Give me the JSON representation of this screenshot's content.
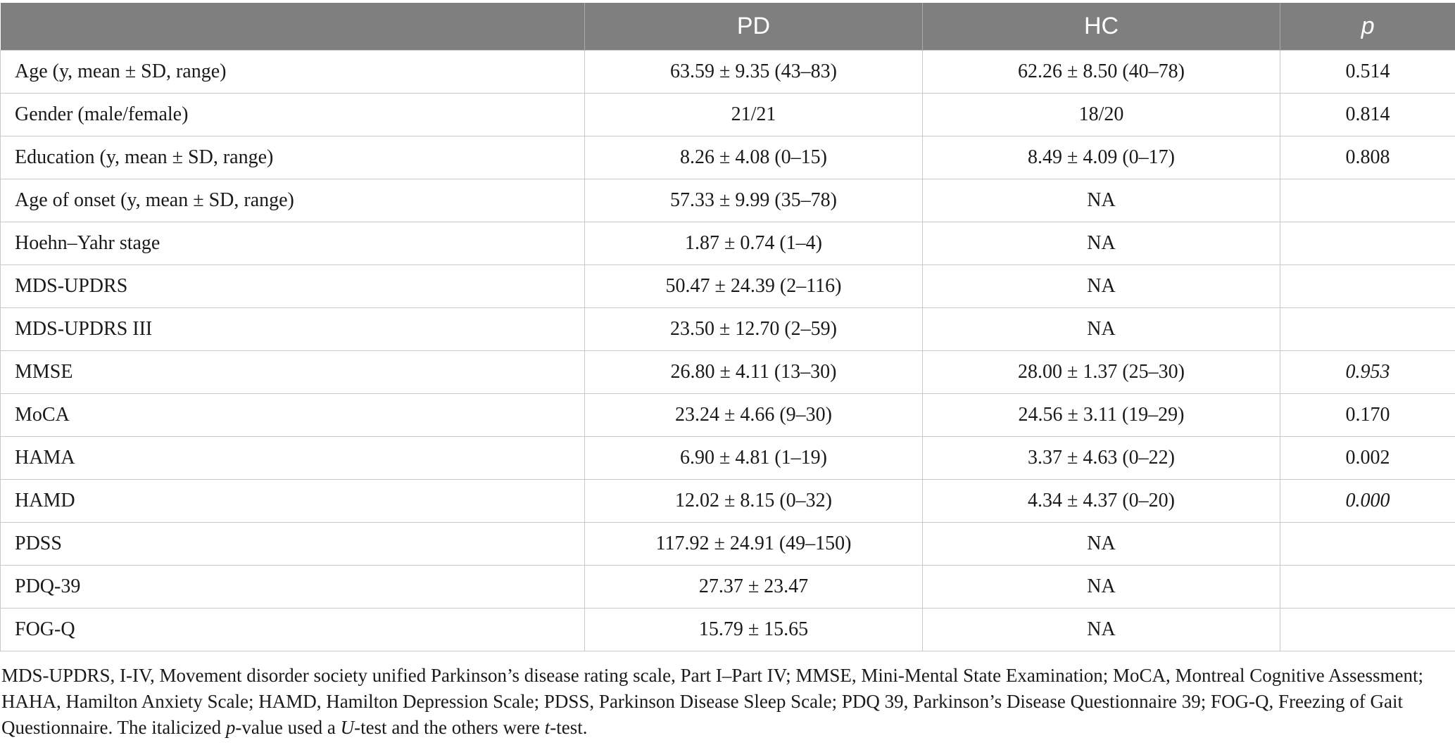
{
  "table": {
    "headers": [
      "",
      "PD",
      "HC",
      "p"
    ],
    "rows": [
      {
        "label": "Age (y, mean ± SD, range)",
        "pd": "63.59 ± 9.35 (43–83)",
        "hc": "62.26 ± 8.50 (40–78)",
        "p": "0.514",
        "p_italic": false
      },
      {
        "label": "Gender (male/female)",
        "pd": "21/21",
        "hc": "18/20",
        "p": "0.814",
        "p_italic": false
      },
      {
        "label": "Education (y, mean ± SD, range)",
        "pd": "8.26 ± 4.08 (0–15)",
        "hc": "8.49 ± 4.09 (0–17)",
        "p": "0.808",
        "p_italic": false
      },
      {
        "label": "Age of onset (y, mean ± SD, range)",
        "pd": "57.33 ± 9.99 (35–78)",
        "hc": "NA",
        "p": "",
        "p_italic": false
      },
      {
        "label": "Hoehn–Yahr stage",
        "pd": "1.87 ± 0.74 (1–4)",
        "hc": "NA",
        "p": "",
        "p_italic": false
      },
      {
        "label": "MDS-UPDRS",
        "pd": "50.47 ± 24.39 (2–116)",
        "hc": "NA",
        "p": "",
        "p_italic": false
      },
      {
        "label": "MDS-UPDRS III",
        "pd": "23.50 ± 12.70 (2–59)",
        "hc": "NA",
        "p": "",
        "p_italic": false
      },
      {
        "label": "MMSE",
        "pd": "26.80 ± 4.11 (13–30)",
        "hc": "28.00 ± 1.37 (25–30)",
        "p": "0.953",
        "p_italic": true
      },
      {
        "label": "MoCA",
        "pd": "23.24 ± 4.66 (9–30)",
        "hc": "24.56 ± 3.11 (19–29)",
        "p": "0.170",
        "p_italic": false
      },
      {
        "label": "HAMA",
        "pd": "6.90 ± 4.81 (1–19)",
        "hc": "3.37 ± 4.63 (0–22)",
        "p": "0.002",
        "p_italic": false
      },
      {
        "label": "HAMD",
        "pd": "12.02 ± 8.15 (0–32)",
        "hc": "4.34 ± 4.37 (0–20)",
        "p": "0.000",
        "p_italic": true
      },
      {
        "label": "PDSS",
        "pd": "117.92 ± 24.91 (49–150)",
        "hc": "NA",
        "p": "",
        "p_italic": false
      },
      {
        "label": "PDQ-39",
        "pd": "27.37 ± 23.47",
        "hc": "NA",
        "p": "",
        "p_italic": false
      },
      {
        "label": "FOG-Q",
        "pd": "15.79 ± 15.65",
        "hc": "NA",
        "p": "",
        "p_italic": false
      }
    ]
  },
  "footnote": {
    "part1": "MDS-UPDRS, I-IV, Movement disorder society unified Parkinson’s disease rating scale, Part I–Part IV; MMSE, Mini-Mental State Examination; MoCA, Montreal Cognitive Assessment; HAHA, Hamilton Anxiety Scale; HAMD, Hamilton Depression Scale; PDSS, Parkinson Disease Sleep Scale; PDQ 39, Parkinson’s Disease Questionnaire 39; FOG-Q, Freezing of Gait Questionnaire. The italicized ",
    "p": "p",
    "part2": "-value used a ",
    "u": "U",
    "part3": "-test and the others were ",
    "t": "t",
    "part4": "-test."
  }
}
